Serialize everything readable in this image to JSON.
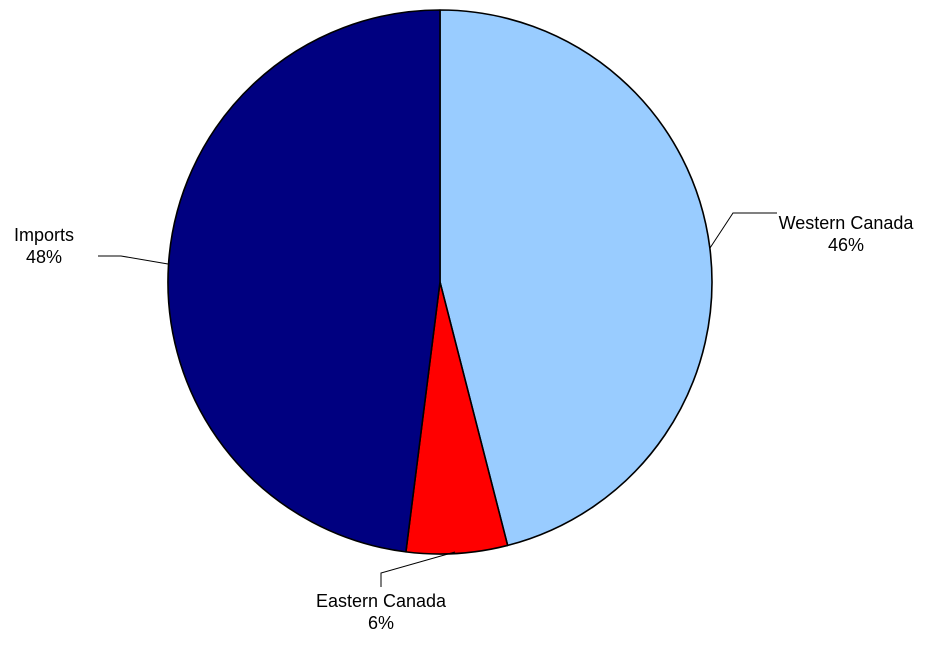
{
  "chart_data": {
    "type": "pie",
    "start_angle_deg": 0,
    "direction": "clockwise",
    "slices": [
      {
        "name": "Western Canada",
        "value": 46,
        "pct_label": "46%",
        "color": "#99CCFF"
      },
      {
        "name": "Eastern Canada",
        "value": 6,
        "pct_label": "6%",
        "color": "#FF0000"
      },
      {
        "name": "Imports",
        "value": 48,
        "pct_label": "48%",
        "color": "#000080"
      }
    ],
    "unit": "%",
    "legend": "none",
    "title": ""
  }
}
